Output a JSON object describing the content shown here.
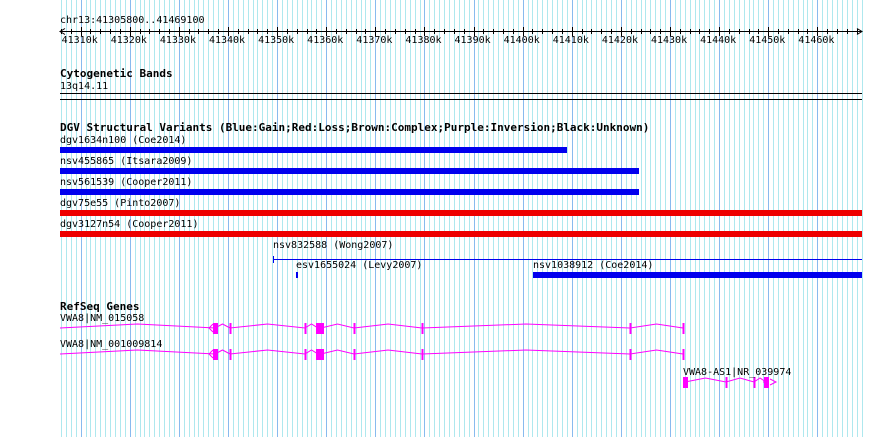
{
  "region": {
    "label": "chr13:41305800..41469100",
    "chrom": "chr13",
    "start": 41305800,
    "end": 41469100
  },
  "ruler": {
    "ticks": [
      "41310k",
      "41320k",
      "41330k",
      "41340k",
      "41350k",
      "41360k",
      "41370k",
      "41380k",
      "41390k",
      "41400k",
      "41410k",
      "41420k",
      "41430k",
      "41440k",
      "41450k",
      "41460k"
    ]
  },
  "cyto": {
    "title": "Cytogenetic Bands",
    "band": "13q14.11"
  },
  "dgv": {
    "title": "DGV Structural Variants (Blue:Gain;Red:Loss;Brown:Complex;Purple:Inversion;Black:Unknown)",
    "colors": {
      "gain": "#0000ee",
      "loss": "#ee0000"
    },
    "items": [
      {
        "label": "dgv1634n100 (Coe2014)",
        "start": 41305800,
        "end": 41409030,
        "type": "gain"
      },
      {
        "label": "nsv455865 (Itsara2009)",
        "start": 41305800,
        "end": 41423690,
        "type": "gain"
      },
      {
        "label": "nsv561539 (Cooper2011)",
        "start": 41305800,
        "end": 41423690,
        "type": "gain"
      },
      {
        "label": "dgv75e55 (Pinto2007)",
        "start": 41305800,
        "end": 41469100,
        "type": "loss"
      },
      {
        "label": "dgv3127n54 (Cooper2011)",
        "start": 41305800,
        "end": 41469100,
        "type": "loss"
      },
      {
        "label": "nsv832588 (Wong2007)",
        "start": 41349170,
        "end": 41469100,
        "type": "gain",
        "thin": true
      },
      {
        "label": "esv1655024 (Levy2007)",
        "start": 41353850,
        "end": 41354250,
        "type": "gain"
      },
      {
        "label": "nsv1038912 (Coe2014)",
        "start": 41402100,
        "end": 41469100,
        "type": "gain"
      }
    ]
  },
  "refseq": {
    "title": "RefSeq Genes",
    "color": "#ff00ff",
    "genes": [
      {
        "label": "VWA8|NM_015058",
        "start": 41305800,
        "end": 41432643,
        "strand": "-",
        "exons": [
          41337358,
          41340412,
          41355682,
          41358329,
          41358940,
          41365658,
          41379503,
          41421852,
          41432643
        ]
      },
      {
        "label": "VWA8|NM_001009814",
        "start": 41305800,
        "end": 41432643,
        "strand": "-",
        "exons": [
          41337358,
          41340412,
          41355682,
          41358329,
          41358940,
          41365658,
          41379503,
          41421852,
          41432643
        ]
      },
      {
        "label": "VWA8-AS1|NR_039974",
        "start": 41433050,
        "end": 41449035,
        "strand": "+",
        "exons": [
          41433050,
          41441510,
          41449650,
          41447206
        ]
      }
    ]
  }
}
